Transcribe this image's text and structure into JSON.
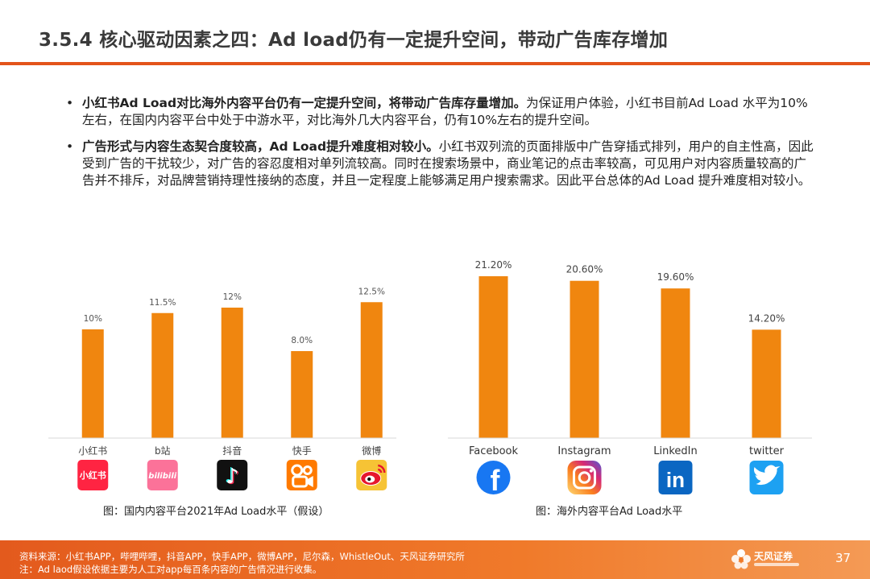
{
  "page": {
    "title": "3.5.4 核心驱动因素之四：Ad load仍有一定提升空间，带动广告库存增加",
    "number": "37"
  },
  "bullets": [
    {
      "marker": "•",
      "bold": "小红书Ad Load对比海外内容平台仍有一定提升空间，将带动广告库存量增加。",
      "text": "为保证用户体验，小红书目前Ad Load 水平为10%左右，在国内内容平台中处于中游水平，对比海外几大内容平台，仍有10%左右的提升空间。"
    },
    {
      "marker": "•",
      "bold": "广告形式与内容生态契合度较高，Ad Load提升难度相对较小。",
      "text": "小红书双列流的页面排版中广告穿插式排列，用户的自主性高，因此受到广告的干扰较少，对广告的容忍度相对单列流较高。同时在搜索场景中，商业笔记的点击率较高，可见用户对内容质量较高的广告并不排斥，对品牌营销持理性接纳的态度，并且一定程度上能够满足用户搜索需求。因此平台总体的Ad Load 提升难度相对较小。"
    }
  ],
  "chart_data": [
    {
      "type": "bar",
      "categories": [
        "小红书",
        "b站",
        "抖音",
        "快手",
        "微博"
      ],
      "values": [
        10,
        11.5,
        12,
        8.0,
        12.5
      ],
      "value_labels": [
        "10%",
        "11.5%",
        "12%",
        "8.0%",
        "12.5%"
      ],
      "ylim": [
        0,
        14
      ],
      "grid": false,
      "bar_color": "#f0860f",
      "caption": "图：国内内容平台2021年Ad Load水平（假设）",
      "category_icons": [
        {
          "name": "xiaohongshu-logo-icon",
          "text": "小红书",
          "bg": "#ff2442"
        },
        {
          "name": "bilibili-logo-icon",
          "text": "bilibili",
          "bg": "#fb7299"
        },
        {
          "name": "douyin-logo-icon",
          "text": "♪",
          "bg": "#111111"
        },
        {
          "name": "kuaishou-logo-icon",
          "text": "",
          "bg": "#ff7a00"
        },
        {
          "name": "weibo-logo-icon",
          "text": "",
          "bg": "#f6c335"
        }
      ]
    },
    {
      "type": "bar",
      "categories": [
        "Facebook",
        "Instagram",
        "LinkedIn",
        "twitter"
      ],
      "values": [
        21.2,
        20.6,
        19.6,
        14.2
      ],
      "value_labels": [
        "21.20%",
        "20.60%",
        "19.60%",
        "14.20%"
      ],
      "ylim": [
        0,
        25
      ],
      "grid": false,
      "bar_color": "#f0860f",
      "caption": "图：海外内容平台Ad Load水平",
      "category_icons": [
        {
          "name": "facebook-logo-icon",
          "text": "f",
          "bg": "#1877f2"
        },
        {
          "name": "instagram-logo-icon",
          "text": "",
          "bg": "#d6249f"
        },
        {
          "name": "linkedin-logo-icon",
          "text": "in",
          "bg": "#0a66c2"
        },
        {
          "name": "twitter-logo-icon",
          "text": "",
          "bg": "#1da1f2"
        }
      ]
    }
  ],
  "footer": {
    "source": "资料来源：小红书APP，哔哩哔哩，抖音APP，快手APP，微博APP，尼尔森，WhistleOut、天风证券研究所",
    "note": "注：Ad laod假设依据主要为人工对app每百条内容的广告情况进行收集。",
    "brand": "天风证券"
  }
}
